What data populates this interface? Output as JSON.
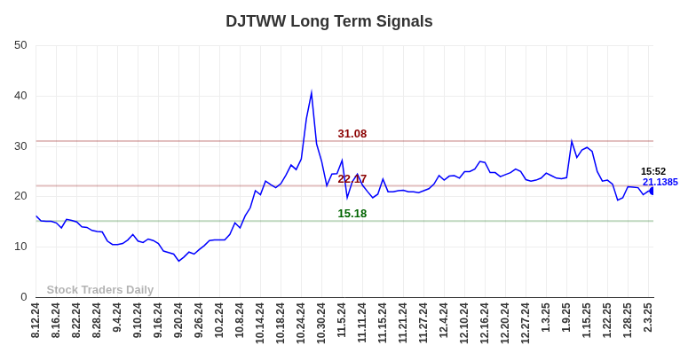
{
  "chart_data": {
    "type": "line",
    "title": "DJTWW Long Term Signals",
    "categories": [
      "8.12.24",
      null,
      null,
      null,
      "8.16.24",
      null,
      null,
      null,
      "8.22.24",
      null,
      null,
      null,
      "8.28.24",
      null,
      null,
      null,
      "9.4.24",
      null,
      null,
      null,
      "9.10.24",
      null,
      null,
      null,
      "9.16.24",
      null,
      null,
      null,
      "9.20.24",
      null,
      null,
      null,
      "9.26.24",
      null,
      null,
      null,
      "10.2.24",
      null,
      null,
      null,
      "10.8.24",
      null,
      null,
      null,
      "10.14.24",
      null,
      null,
      null,
      "10.18.24",
      null,
      null,
      null,
      "10.24.24",
      null,
      null,
      null,
      "10.30.24",
      null,
      null,
      null,
      "11.5.24",
      null,
      null,
      null,
      "11.11.24",
      null,
      null,
      null,
      "11.15.24",
      null,
      null,
      null,
      "11.21.24",
      null,
      null,
      null,
      "11.27.24",
      null,
      null,
      null,
      "12.4.24",
      null,
      null,
      null,
      "12.10.24",
      null,
      null,
      null,
      "12.16.24",
      null,
      null,
      null,
      "12.20.24",
      null,
      null,
      null,
      "12.27.24",
      null,
      null,
      null,
      "1.3.25",
      null,
      null,
      null,
      "1.9.25",
      null,
      null,
      null,
      "1.15.25",
      null,
      null,
      null,
      "1.22.25",
      null,
      null,
      null,
      "1.28.25",
      null,
      null,
      null,
      "2.3.25",
      null
    ],
    "values": [
      16.2,
      15.2,
      15.1,
      15.1,
      14.8,
      13.8,
      15.5,
      15.3,
      15.0,
      14.0,
      13.9,
      13.3,
      13.1,
      13.0,
      11.2,
      10.5,
      10.5,
      10.7,
      11.4,
      12.5,
      11.2,
      10.9,
      11.6,
      11.3,
      10.7,
      9.2,
      8.9,
      8.6,
      7.2,
      8.0,
      9.0,
      8.6,
      9.5,
      10.3,
      11.3,
      11.4,
      11.4,
      11.4,
      12.5,
      14.8,
      13.8,
      16.2,
      17.8,
      21.2,
      20.4,
      23.1,
      22.4,
      21.8,
      22.6,
      24.3,
      26.3,
      25.4,
      27.5,
      35.5,
      40.6,
      30.5,
      27.0,
      22.2,
      24.5,
      24.6,
      27.2,
      19.8,
      23.0,
      24.5,
      22.3,
      21.0,
      19.8,
      20.5,
      23.5,
      21.0,
      21.0,
      21.2,
      21.3,
      21.0,
      21.0,
      20.8,
      21.2,
      21.6,
      22.5,
      24.2,
      23.3,
      24.1,
      24.2,
      23.7,
      25.0,
      25.0,
      25.5,
      27.0,
      26.8,
      24.8,
      24.8,
      24.0,
      24.4,
      24.8,
      25.5,
      25.0,
      23.4,
      23.1,
      23.3,
      23.7,
      24.7,
      24.2,
      23.7,
      23.6,
      23.8,
      31.0,
      27.8,
      29.3,
      29.8,
      29.0,
      25.0,
      23.1,
      23.3,
      22.5,
      19.3,
      19.8,
      22.0,
      21.9,
      21.8,
      20.4,
      21.1,
      21.1385
    ],
    "color": "#0000ff",
    "ylim": [
      0,
      50
    ],
    "yticks": [
      0,
      10,
      20,
      30,
      40,
      50
    ],
    "grid": true,
    "hlines": [
      {
        "value": 31.08,
        "color": "#8b0000"
      },
      {
        "value": 22.17,
        "color": "#8b0000"
      },
      {
        "value": 15.18,
        "color": "#006400"
      }
    ],
    "time_label": "15:52",
    "watermark": "Stock Traders Daily"
  }
}
